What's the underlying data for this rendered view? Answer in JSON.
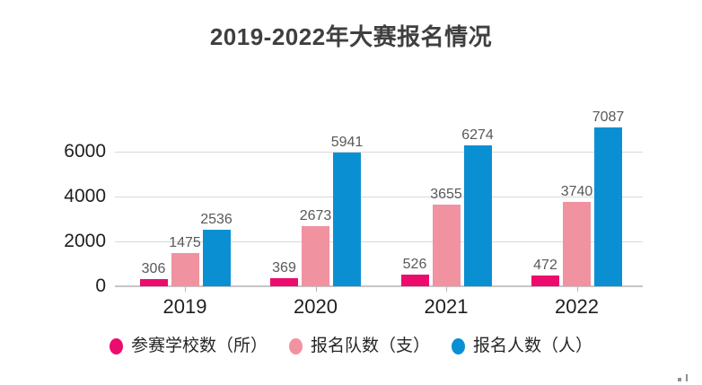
{
  "title": "2019-2022年大赛报名情况",
  "chart_data": {
    "type": "bar",
    "title": "2019-2022年大赛报名情况",
    "categories": [
      "2019",
      "2020",
      "2021",
      "2022"
    ],
    "series": [
      {
        "id": "schools",
        "name": "参赛学校数（所）",
        "color": "#ec0c6d",
        "values": [
          306,
          369,
          526,
          472
        ]
      },
      {
        "id": "teams",
        "name": "报名队数（支）",
        "color": "#f092a0",
        "values": [
          1475,
          2673,
          3655,
          3740
        ]
      },
      {
        "id": "participants",
        "name": "报名人数（人）",
        "color": "#0a90d2",
        "values": [
          2536,
          5941,
          6274,
          7087
        ]
      }
    ],
    "yticks": [
      0,
      2000,
      4000,
      6000
    ],
    "ylim": [
      0,
      7200
    ],
    "grid": true,
    "value_labels": true,
    "legend_position": "bottom",
    "xlabel": "",
    "ylabel": ""
  },
  "colors": {
    "series_school": "#ec0c6d",
    "series_team": "#f092a0",
    "series_people": "#0a90d2",
    "gridline": "#d9d9d9",
    "axis_line": "#c6c6c6",
    "title_text": "#3f3f3f",
    "axis_text": "#1f1f1f",
    "value_label_text": "#595959"
  }
}
